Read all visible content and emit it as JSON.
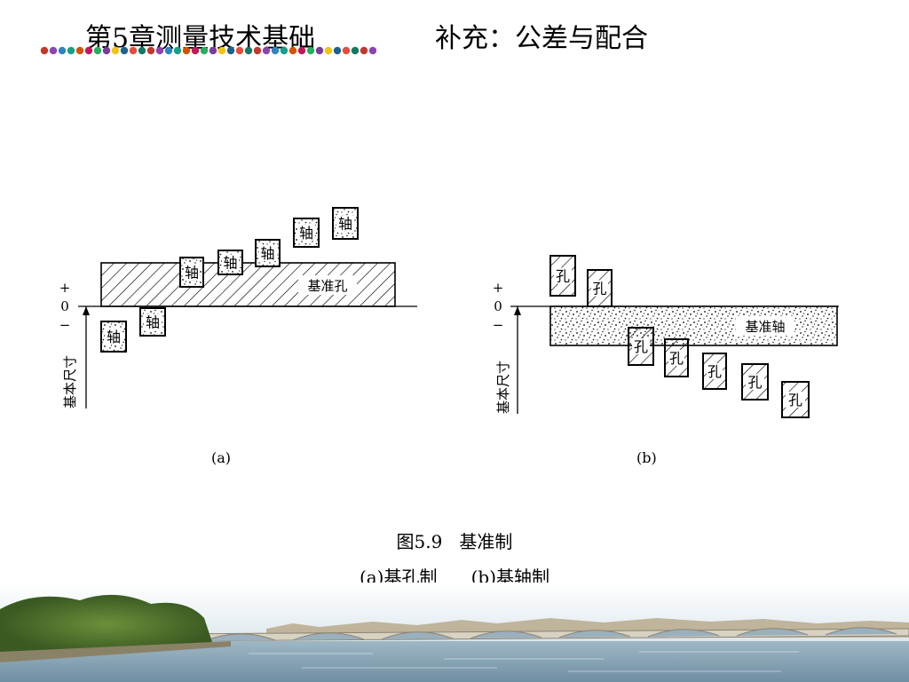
{
  "header": {
    "chapter_title": "第5章测量技术基础",
    "section_title": "补充：公差与配合"
  },
  "decor": {
    "dot_colors": [
      "#c0392b",
      "#8e44ad",
      "#2e86c1",
      "#16a085",
      "#d35400",
      "#c2185b",
      "#27ae60",
      "#7d3c98",
      "#f1c40f",
      "#1f618d",
      "#e74c3c",
      "#117a65"
    ]
  },
  "figure_a": {
    "label": "(a)",
    "axis_plus": "+",
    "axis_zero": "0",
    "axis_minus": "−",
    "axis_title": "基本尺寸",
    "zone_label": "基准孔",
    "part_label": "轴"
  },
  "figure_b": {
    "label": "(b)",
    "axis_plus": "+",
    "axis_zero": "0",
    "axis_minus": "−",
    "axis_title": "基本尺寸",
    "zone_label": "基准轴",
    "part_label": "孔"
  },
  "caption": {
    "line1": "图5.9   基准制",
    "line2": "(a)基孔制      (b)基轴制"
  }
}
